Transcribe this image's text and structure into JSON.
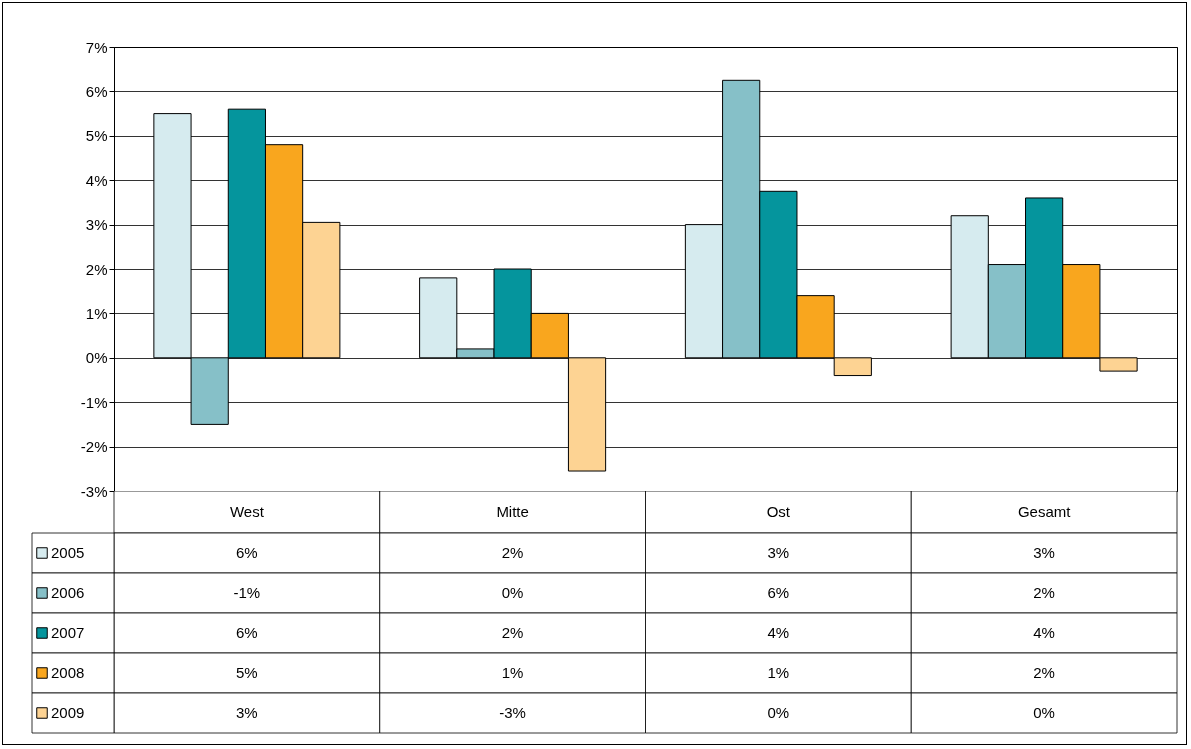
{
  "chart_data": {
    "type": "bar",
    "categories": [
      "West",
      "Mitte",
      "Ost",
      "Gesamt"
    ],
    "series": [
      {
        "name": "2005",
        "color": "#d6ebef",
        "values": [
          5.5,
          1.8,
          3.0,
          3.2
        ],
        "value_labels": [
          "6%",
          "2%",
          "3%",
          "3%"
        ]
      },
      {
        "name": "2006",
        "color": "#86c0c8",
        "values": [
          -1.5,
          0.2,
          6.25,
          2.1
        ],
        "value_labels": [
          "-1%",
          "0%",
          "6%",
          "2%"
        ]
      },
      {
        "name": "2007",
        "color": "#05959d",
        "values": [
          5.6,
          2.0,
          3.75,
          3.6
        ],
        "value_labels": [
          "6%",
          "2%",
          "4%",
          "4%"
        ]
      },
      {
        "name": "2008",
        "color": "#f9a61e",
        "values": [
          4.8,
          1.0,
          1.4,
          2.1
        ],
        "value_labels": [
          "5%",
          "1%",
          "1%",
          "2%"
        ]
      },
      {
        "name": "2009",
        "color": "#fdd393",
        "values": [
          3.05,
          -2.55,
          -0.4,
          -0.3
        ],
        "value_labels": [
          "3%",
          "-3%",
          "0%",
          "0%"
        ]
      }
    ],
    "ylim": [
      -3,
      7
    ],
    "yticks": [
      {
        "value": -3,
        "label": "-3%"
      },
      {
        "value": -2,
        "label": "-2%"
      },
      {
        "value": -1,
        "label": "-1%"
      },
      {
        "value": 0,
        "label": "0%"
      },
      {
        "value": 1,
        "label": "1%"
      },
      {
        "value": 2,
        "label": "2%"
      },
      {
        "value": 3,
        "label": "3%"
      },
      {
        "value": 4,
        "label": "4%"
      },
      {
        "value": 5,
        "label": "5%"
      },
      {
        "value": 6,
        "label": "6%"
      },
      {
        "value": 7,
        "label": "7%"
      }
    ],
    "grid": "y",
    "legend": "bottom left"
  }
}
